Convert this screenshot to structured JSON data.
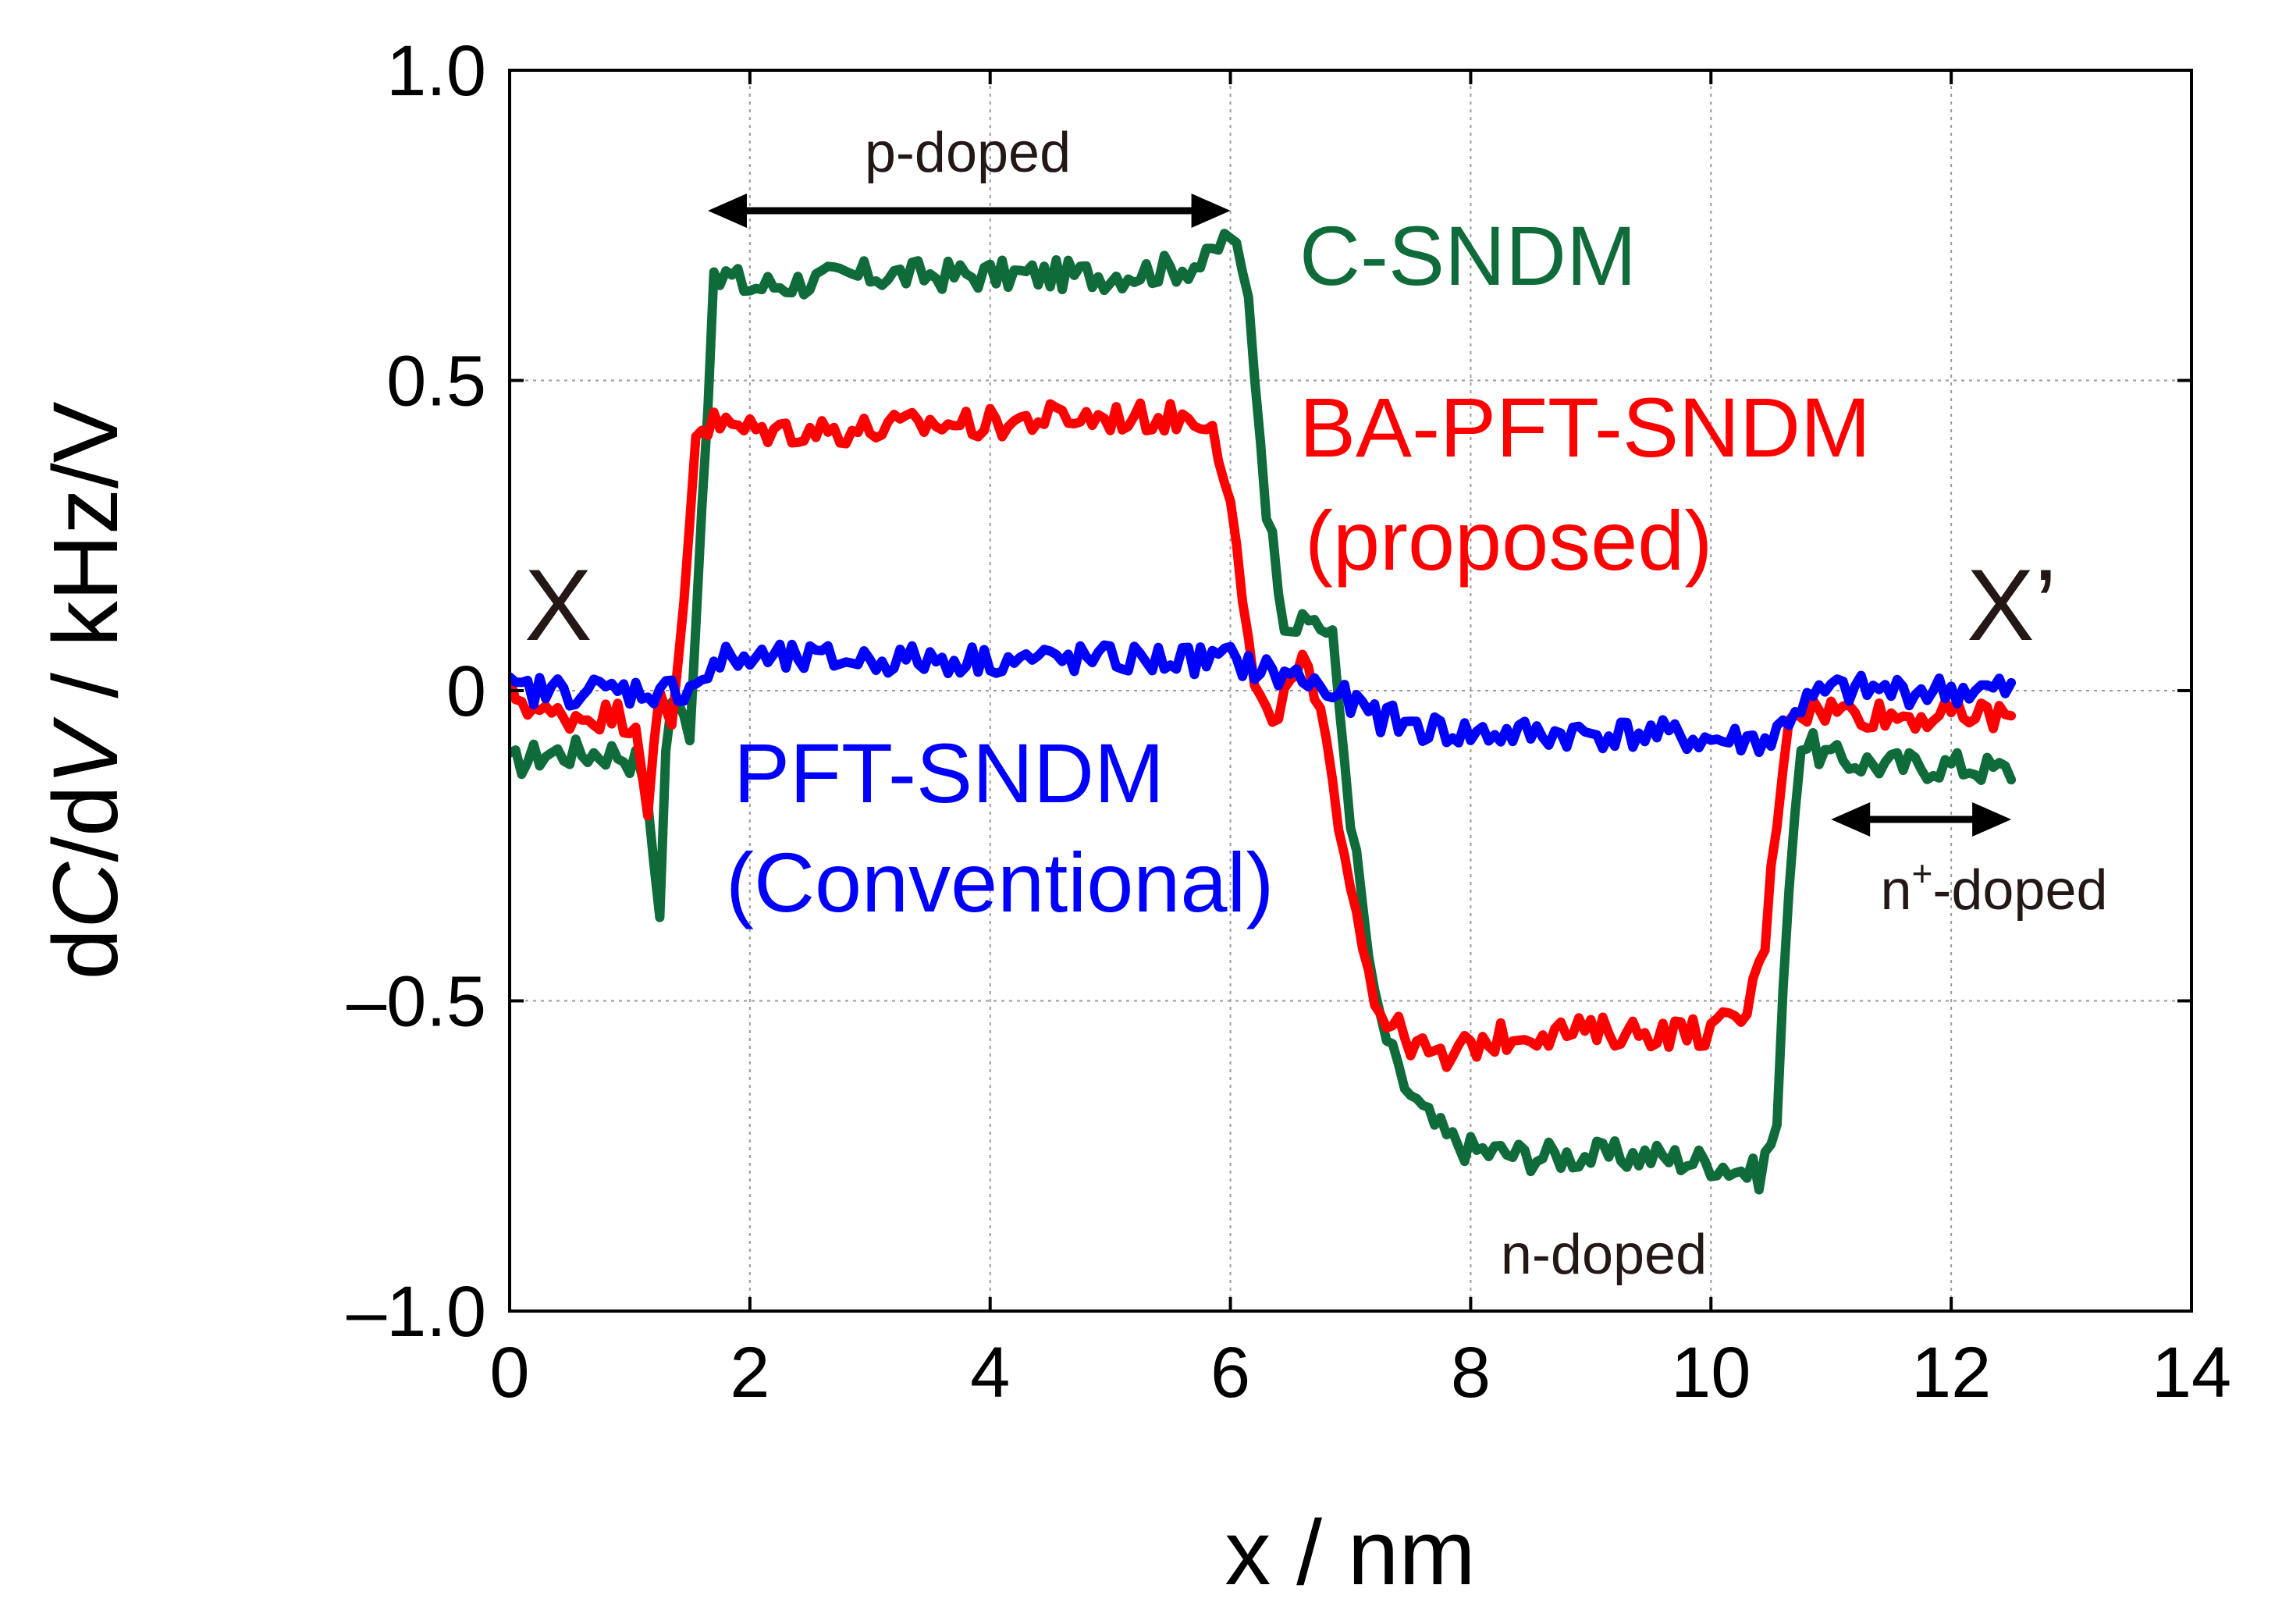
{
  "chart_data": {
    "type": "line",
    "xlabel": "x / nm",
    "ylabel_parts": [
      "dC/d",
      "V",
      " / kHz/V"
    ],
    "ylabel_italic_C": "C",
    "xlim": [
      0,
      14
    ],
    "ylim": [
      -1.0,
      1.0
    ],
    "xticks": [
      0,
      2,
      4,
      6,
      8,
      10,
      12,
      14
    ],
    "xtick_labels": [
      "0",
      "2",
      "4",
      "6",
      "8",
      "10",
      "12",
      "14"
    ],
    "yticks": [
      1.0,
      0.5,
      0,
      -0.5,
      -1.0
    ],
    "ytick_labels": [
      "1.0",
      "0.5",
      "0",
      "–0.5",
      "–1.0"
    ],
    "grid": true,
    "series": [
      {
        "name": "C-SNDM",
        "color": "#0f6b39",
        "points": [
          [
            0,
            -0.12
          ],
          [
            0.3,
            -0.1
          ],
          [
            0.6,
            -0.1
          ],
          [
            0.9,
            -0.1
          ],
          [
            1.1,
            -0.12
          ],
          [
            1.25,
            -0.35
          ],
          [
            1.32,
            0.0
          ],
          [
            1.4,
            -0.03
          ],
          [
            1.5,
            -0.06
          ],
          [
            1.6,
            0.3
          ],
          [
            1.7,
            0.65
          ],
          [
            1.8,
            0.67
          ],
          [
            2.0,
            0.65
          ],
          [
            2.5,
            0.66
          ],
          [
            3.0,
            0.67
          ],
          [
            3.5,
            0.67
          ],
          [
            4.0,
            0.67
          ],
          [
            4.5,
            0.67
          ],
          [
            5.0,
            0.67
          ],
          [
            5.5,
            0.68
          ],
          [
            5.8,
            0.69
          ],
          [
            6.0,
            0.74
          ],
          [
            6.15,
            0.63
          ],
          [
            6.3,
            0.3
          ],
          [
            6.45,
            0.12
          ],
          [
            6.6,
            0.1
          ],
          [
            6.7,
            0.12
          ],
          [
            6.85,
            0.08
          ],
          [
            7.0,
            -0.2
          ],
          [
            7.2,
            -0.5
          ],
          [
            7.4,
            -0.62
          ],
          [
            7.6,
            -0.68
          ],
          [
            7.8,
            -0.72
          ],
          [
            8.0,
            -0.74
          ],
          [
            8.5,
            -0.75
          ],
          [
            9.0,
            -0.75
          ],
          [
            9.5,
            -0.75
          ],
          [
            10.0,
            -0.76
          ],
          [
            10.4,
            -0.78
          ],
          [
            10.55,
            -0.7
          ],
          [
            10.65,
            -0.3
          ],
          [
            10.75,
            -0.08
          ],
          [
            11.0,
            -0.11
          ],
          [
            11.5,
            -0.12
          ],
          [
            12.0,
            -0.12
          ],
          [
            12.5,
            -0.13
          ]
        ]
      },
      {
        "name": "BA-PFT-SNDM",
        "color": "#ff0000",
        "points": [
          [
            0,
            0.0
          ],
          [
            0.3,
            -0.04
          ],
          [
            0.6,
            -0.04
          ],
          [
            0.9,
            -0.04
          ],
          [
            1.05,
            -0.05
          ],
          [
            1.15,
            -0.18
          ],
          [
            1.25,
            -0.02
          ],
          [
            1.35,
            -0.06
          ],
          [
            1.45,
            0.15
          ],
          [
            1.55,
            0.42
          ],
          [
            1.7,
            0.43
          ],
          [
            2.0,
            0.42
          ],
          [
            2.5,
            0.42
          ],
          [
            3.0,
            0.42
          ],
          [
            3.5,
            0.43
          ],
          [
            4.0,
            0.43
          ],
          [
            4.5,
            0.44
          ],
          [
            5.0,
            0.44
          ],
          [
            5.5,
            0.44
          ],
          [
            5.85,
            0.44
          ],
          [
            6.0,
            0.3
          ],
          [
            6.1,
            0.15
          ],
          [
            6.2,
            0.0
          ],
          [
            6.3,
            -0.05
          ],
          [
            6.5,
            0.0
          ],
          [
            6.6,
            0.05
          ],
          [
            6.75,
            -0.05
          ],
          [
            6.9,
            -0.2
          ],
          [
            7.05,
            -0.35
          ],
          [
            7.2,
            -0.5
          ],
          [
            7.4,
            -0.55
          ],
          [
            7.6,
            -0.58
          ],
          [
            7.8,
            -0.6
          ],
          [
            8.0,
            -0.57
          ],
          [
            8.5,
            -0.55
          ],
          [
            9.0,
            -0.55
          ],
          [
            9.5,
            -0.55
          ],
          [
            10.0,
            -0.55
          ],
          [
            10.3,
            -0.52
          ],
          [
            10.45,
            -0.4
          ],
          [
            10.55,
            -0.2
          ],
          [
            10.65,
            -0.03
          ],
          [
            11.0,
            -0.03
          ],
          [
            11.5,
            -0.04
          ],
          [
            12.0,
            -0.04
          ],
          [
            12.5,
            -0.04
          ]
        ]
      },
      {
        "name": "PFT-SNDM",
        "color": "#0000ff",
        "points": [
          [
            0,
            0.0
          ],
          [
            0.5,
            0.0
          ],
          [
            1.0,
            0.0
          ],
          [
            1.4,
            0.0
          ],
          [
            1.6,
            0.02
          ],
          [
            1.8,
            0.05
          ],
          [
            2.0,
            0.05
          ],
          [
            2.5,
            0.05
          ],
          [
            3.0,
            0.05
          ],
          [
            3.5,
            0.05
          ],
          [
            4.0,
            0.05
          ],
          [
            4.5,
            0.05
          ],
          [
            5.0,
            0.05
          ],
          [
            5.5,
            0.05
          ],
          [
            6.0,
            0.05
          ],
          [
            6.3,
            0.03
          ],
          [
            6.6,
            0.02
          ],
          [
            6.9,
            -0.01
          ],
          [
            7.2,
            -0.04
          ],
          [
            7.6,
            -0.06
          ],
          [
            8.0,
            -0.07
          ],
          [
            8.5,
            -0.07
          ],
          [
            9.0,
            -0.07
          ],
          [
            9.5,
            -0.07
          ],
          [
            10.0,
            -0.08
          ],
          [
            10.5,
            -0.08
          ],
          [
            10.7,
            -0.03
          ],
          [
            11.0,
            0.0
          ],
          [
            11.5,
            0.0
          ],
          [
            12.0,
            0.0
          ],
          [
            12.5,
            0.0
          ]
        ]
      }
    ],
    "annotations": {
      "p_doped": "p-doped",
      "n_doped": "n-doped",
      "n_plus_base": "n",
      "n_plus_sup": "+",
      "n_plus_rest": "-doped",
      "x_left": "X",
      "x_right": "X’"
    },
    "series_labels": {
      "csndm": "C-SNDM",
      "ba_line1": "BA-PFT-SNDM",
      "ba_line2": "(proposed)",
      "pft_line1": "PFT-SNDM",
      "pft_line2": "(Conventional)"
    },
    "arrow_color": "#000000"
  }
}
